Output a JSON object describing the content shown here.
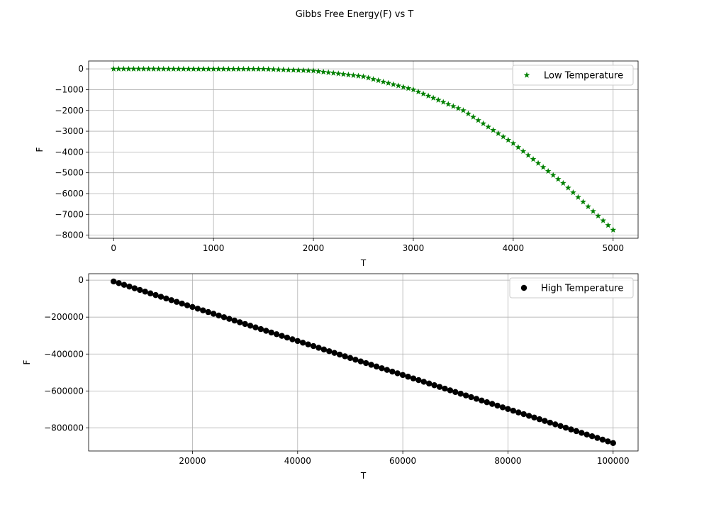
{
  "figure": {
    "suptitle": "Gibbs Free Energy(F) vs T"
  },
  "chart_data": [
    {
      "type": "scatter",
      "xlabel": "T",
      "ylabel": "F",
      "xlim": [
        -250,
        5250
      ],
      "ylim": [
        -8150,
        380
      ],
      "xticks": [
        0,
        1000,
        2000,
        3000,
        4000,
        5000
      ],
      "yticks": [
        0,
        -1000,
        -2000,
        -3000,
        -4000,
        -5000,
        -6000,
        -7000,
        -8000
      ],
      "grid": true,
      "legend_position": "upper right",
      "series": [
        {
          "name": "Low Temperature",
          "marker": "star",
          "color": "#008000",
          "x_start": 0,
          "x_step": 50,
          "x_end": 5000,
          "curve": {
            "description": "F approximately 0 until T~1500, then falls as power law reaching -7750 at T=5000",
            "knots_x": [
              0,
              1500,
              2000,
              2500,
              3000,
              3500,
              4000,
              4500,
              5000
            ],
            "knots_y": [
              0,
              -10,
              -90,
              -370,
              -1000,
              -2000,
              -3580,
              -5500,
              -7750
            ]
          }
        }
      ]
    },
    {
      "type": "scatter",
      "xlabel": "T",
      "ylabel": "F",
      "xlim": [
        250,
        104750
      ],
      "ylim": [
        -925000,
        35000
      ],
      "xticks": [
        20000,
        40000,
        60000,
        80000,
        100000
      ],
      "yticks": [
        0,
        -200000,
        -400000,
        -600000,
        -800000
      ],
      "grid": true,
      "legend_position": "upper right",
      "series": [
        {
          "name": "High Temperature",
          "marker": "circle",
          "color": "#000000",
          "x_start": 5000,
          "x_step": 1000,
          "x_end": 100000,
          "curve": {
            "description": "approximately linear",
            "knots_x": [
              5000,
              100000
            ],
            "knots_y": [
              -7000,
              -882000
            ]
          }
        }
      ]
    }
  ]
}
